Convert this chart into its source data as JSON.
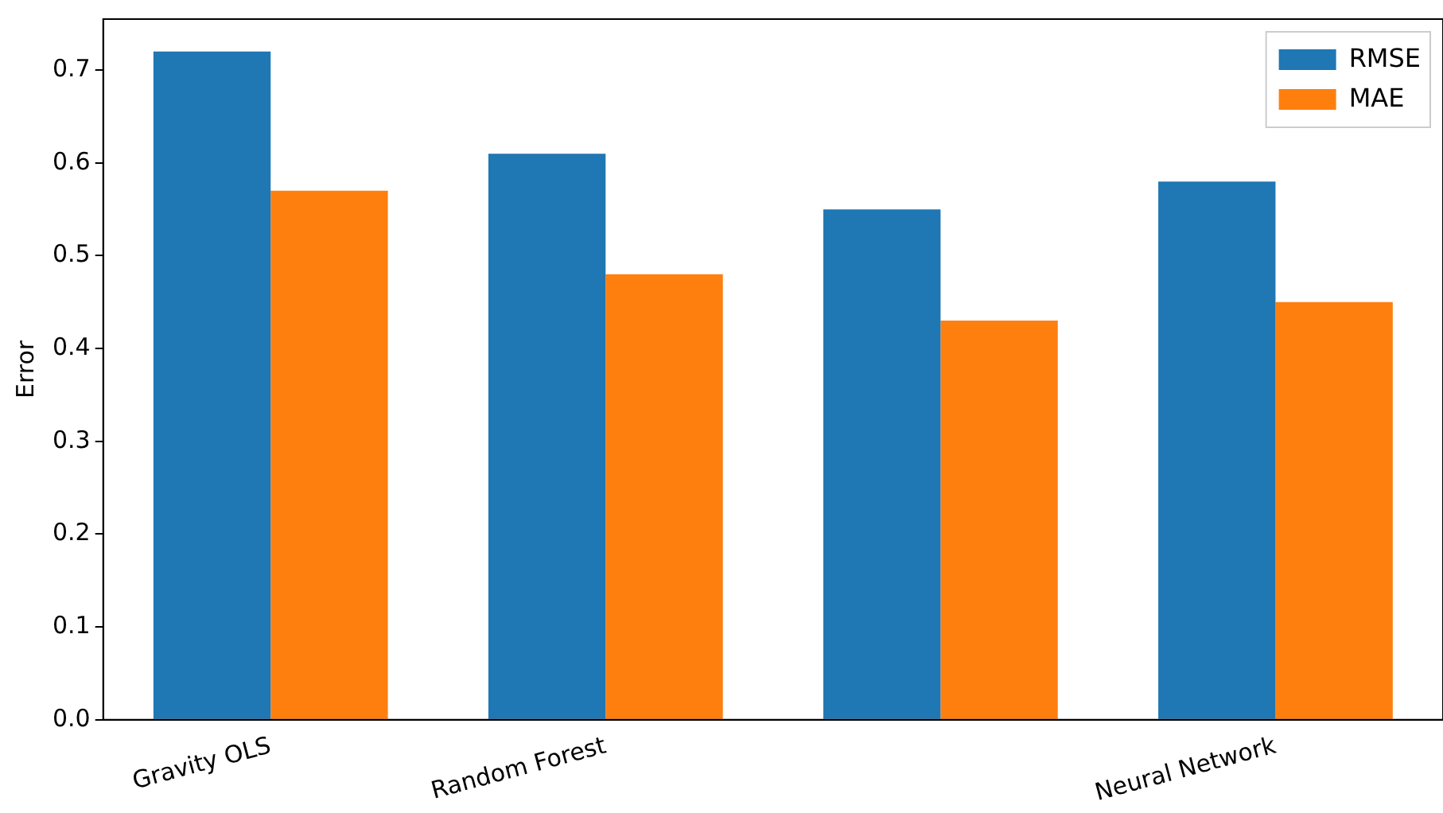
{
  "chart_data": {
    "type": "bar",
    "ylabel": "Error",
    "categories": [
      "Gravity OLS",
      "Random Forest",
      null,
      "Neural Network"
    ],
    "series": [
      {
        "name": "RMSE",
        "color": "#1f77b4",
        "values": [
          0.72,
          0.61,
          0.55,
          0.58
        ]
      },
      {
        "name": "MAE",
        "color": "#ff7f0e",
        "values": [
          0.57,
          0.48,
          0.43,
          0.45
        ]
      }
    ],
    "ylim": [
      0,
      0.755
    ],
    "yticks": [
      {
        "value": 0,
        "label": "0.0"
      },
      0.1,
      0.2,
      0.3,
      0.4,
      0.5,
      0.6,
      0.7
    ],
    "grid": false,
    "legend": "top right"
  }
}
